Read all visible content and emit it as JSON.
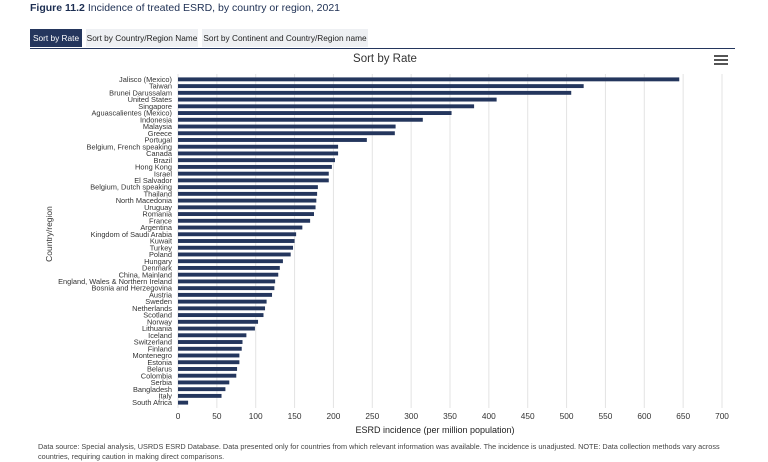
{
  "figure": {
    "number": "Figure 11.2",
    "caption": "Incidence of treated ESRD, by country or region, 2021"
  },
  "tabs": [
    {
      "label": "Sort by Rate",
      "active": true
    },
    {
      "label": "Sort by Country/Region Name",
      "active": false
    },
    {
      "label": "Sort by Continent and Country/Region name",
      "active": false
    }
  ],
  "menu_icon": "hamburger-menu-icon",
  "colors": {
    "bar": "#24365d",
    "grid": "#e3e3e3",
    "active_tab": "#24365d"
  },
  "source_note": "Data source: Special analysis, USRDS ESRD Database. Data presented only for countries from which relevant information was available. The incidence is unadjusted. NOTE: Data collection methods vary across countries, requiring caution in making direct comparisons.",
  "chart_data": {
    "type": "bar",
    "orientation": "horizontal",
    "title": "Sort by Rate",
    "xlabel": "ESRD incidence (per million population)",
    "ylabel": "Country/region",
    "xlim": [
      0,
      700
    ],
    "xticks": [
      0,
      50,
      100,
      150,
      200,
      250,
      300,
      350,
      400,
      450,
      500,
      550,
      600,
      650,
      700
    ],
    "grid": true,
    "categories": [
      "Jalisco (Mexico)",
      "Taiwan",
      "Brunei Darussalam",
      "United States",
      "Singapore",
      "Aguascalientes (Mexico)",
      "Indonesia",
      "Malaysia",
      "Greece",
      "Portugal",
      "Belgium, French speaking",
      "Canada",
      "Brazil",
      "Hong Kong",
      "Israel",
      "El Salvador",
      "Belgium, Dutch speaking",
      "Thailand",
      "North Macedonia",
      "Uruguay",
      "Romania",
      "France",
      "Argentina",
      "Kingdom of Saudi Arabia",
      "Kuwait",
      "Turkey",
      "Poland",
      "Hungary",
      "Denmark",
      "China, Mainland",
      "England, Wales & Northern Ireland",
      "Bosnia and Herzegovina",
      "Austria",
      "Sweden",
      "Netherlands",
      "Scotland",
      "Norway",
      "Lithuania",
      "Iceland",
      "Switzerland",
      "Finland",
      "Montenegro",
      "Estonia",
      "Belarus",
      "Colombia",
      "Serbia",
      "Bangladesh",
      "Italy",
      "South Africa"
    ],
    "values": [
      645,
      522,
      506,
      410,
      381,
      352,
      315,
      280,
      279,
      243,
      206,
      206,
      202,
      198,
      194,
      194,
      180,
      179,
      178,
      177,
      175,
      170,
      160,
      152,
      150,
      148,
      145,
      135,
      131,
      129,
      125,
      124,
      121,
      114,
      112,
      110,
      103,
      99,
      88,
      83,
      82,
      79,
      79,
      76,
      75,
      66,
      61,
      56,
      13
    ]
  }
}
